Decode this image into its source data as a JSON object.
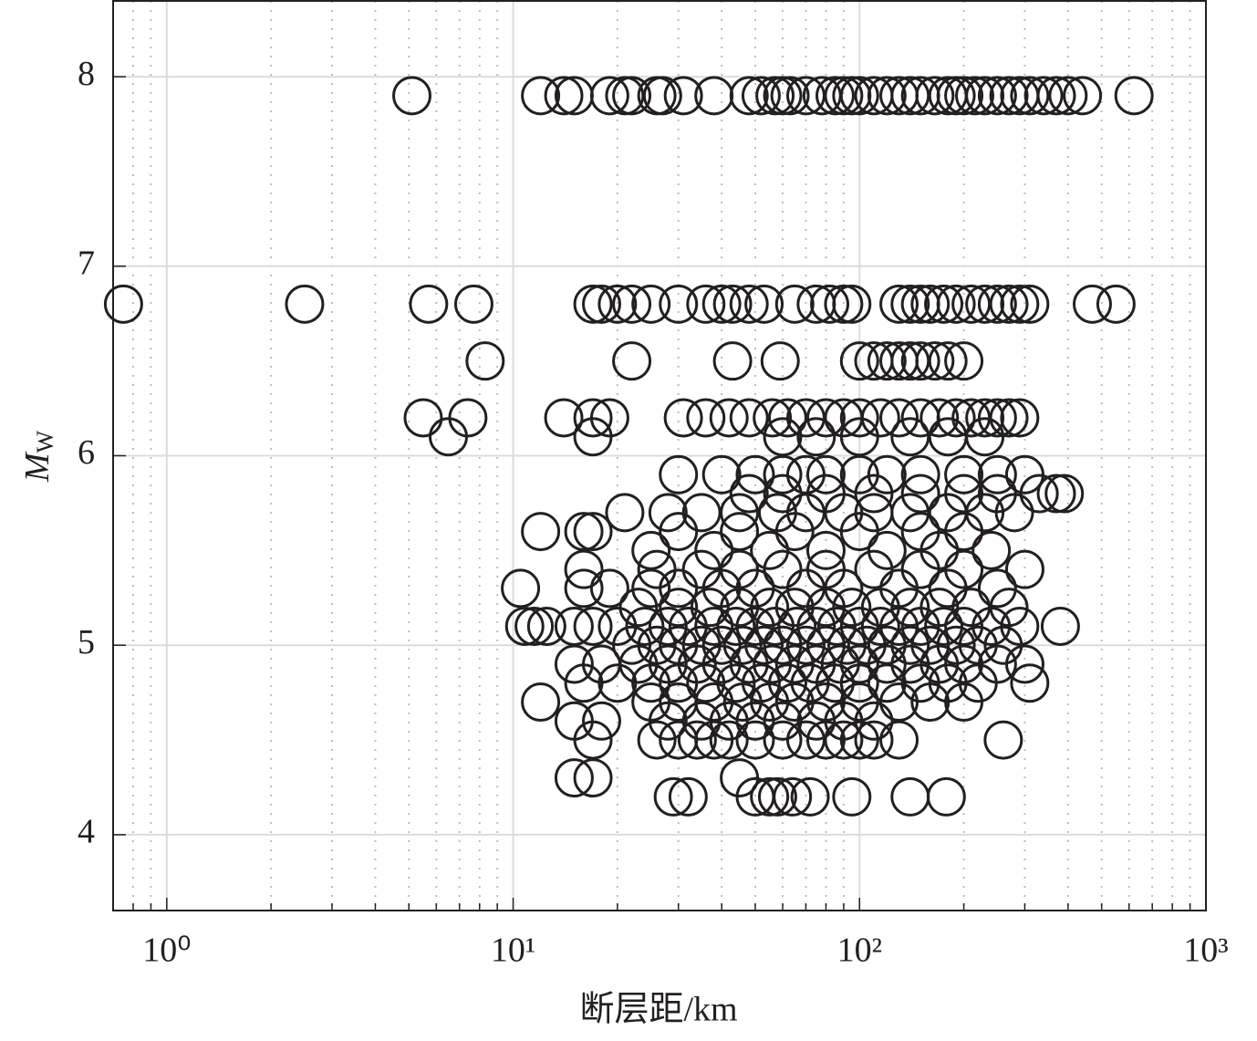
{
  "chart_data": {
    "type": "scatter",
    "xlabel": "断层距/km",
    "ylabel": [
      "M",
      "W"
    ],
    "xscale": "log",
    "xlim": [
      0.7,
      1000
    ],
    "ylim": [
      3.6,
      8.4
    ],
    "xticks": [
      {
        "value": 1,
        "label": "10⁰"
      },
      {
        "value": 10,
        "label": "10¹"
      },
      {
        "value": 100,
        "label": "10²"
      },
      {
        "value": 1000,
        "label": "10³"
      }
    ],
    "xticks_minor": [
      0.8,
      0.9,
      2,
      3,
      4,
      5,
      6,
      7,
      8,
      9,
      20,
      30,
      40,
      50,
      60,
      70,
      80,
      90,
      200,
      300,
      400,
      500,
      600,
      700,
      800,
      900
    ],
    "yticks": [
      4,
      5,
      6,
      7,
      8
    ],
    "grid": true,
    "color": "#231f20",
    "points": [
      [
        5.1,
        7.9
      ],
      [
        12,
        7.9
      ],
      [
        14,
        7.9
      ],
      [
        15,
        7.9
      ],
      [
        19,
        7.9
      ],
      [
        21,
        7.9
      ],
      [
        22,
        7.9
      ],
      [
        26,
        7.9
      ],
      [
        27,
        7.9
      ],
      [
        31,
        7.9
      ],
      [
        38,
        7.9
      ],
      [
        48,
        7.9
      ],
      [
        52,
        7.9
      ],
      [
        57,
        7.9
      ],
      [
        60,
        7.9
      ],
      [
        63,
        7.9
      ],
      [
        70,
        7.9
      ],
      [
        78,
        7.9
      ],
      [
        85,
        7.9
      ],
      [
        90,
        7.9
      ],
      [
        95,
        7.9
      ],
      [
        100,
        7.9
      ],
      [
        110,
        7.9
      ],
      [
        120,
        7.9
      ],
      [
        130,
        7.9
      ],
      [
        140,
        7.9
      ],
      [
        150,
        7.9
      ],
      [
        165,
        7.9
      ],
      [
        180,
        7.9
      ],
      [
        190,
        7.9
      ],
      [
        200,
        7.9
      ],
      [
        215,
        7.9
      ],
      [
        230,
        7.9
      ],
      [
        250,
        7.9
      ],
      [
        270,
        7.9
      ],
      [
        290,
        7.9
      ],
      [
        310,
        7.9
      ],
      [
        340,
        7.9
      ],
      [
        370,
        7.9
      ],
      [
        400,
        7.9
      ],
      [
        440,
        7.9
      ],
      [
        620,
        7.9
      ],
      [
        0.75,
        6.8
      ],
      [
        2.5,
        6.8
      ],
      [
        5.7,
        6.8
      ],
      [
        7.7,
        6.8
      ],
      [
        17,
        6.8
      ],
      [
        18,
        6.8
      ],
      [
        20,
        6.8
      ],
      [
        22,
        6.8
      ],
      [
        25,
        6.8
      ],
      [
        30,
        6.8
      ],
      [
        36,
        6.8
      ],
      [
        40,
        6.8
      ],
      [
        43,
        6.8
      ],
      [
        48,
        6.8
      ],
      [
        53,
        6.8
      ],
      [
        65,
        6.8
      ],
      [
        75,
        6.8
      ],
      [
        82,
        6.8
      ],
      [
        90,
        6.8
      ],
      [
        95,
        6.8
      ],
      [
        130,
        6.8
      ],
      [
        140,
        6.8
      ],
      [
        150,
        6.8
      ],
      [
        160,
        6.8
      ],
      [
        175,
        6.8
      ],
      [
        190,
        6.8
      ],
      [
        210,
        6.8
      ],
      [
        230,
        6.8
      ],
      [
        250,
        6.8
      ],
      [
        270,
        6.8
      ],
      [
        290,
        6.8
      ],
      [
        310,
        6.8
      ],
      [
        470,
        6.8
      ],
      [
        550,
        6.8
      ],
      [
        8.3,
        6.5
      ],
      [
        22,
        6.5
      ],
      [
        43,
        6.5
      ],
      [
        59,
        6.5
      ],
      [
        100,
        6.5
      ],
      [
        110,
        6.5
      ],
      [
        120,
        6.5
      ],
      [
        130,
        6.5
      ],
      [
        140,
        6.5
      ],
      [
        150,
        6.5
      ],
      [
        165,
        6.5
      ],
      [
        180,
        6.5
      ],
      [
        200,
        6.5
      ],
      [
        5.5,
        6.2
      ],
      [
        7.4,
        6.2
      ],
      [
        14,
        6.2
      ],
      [
        17,
        6.2
      ],
      [
        19,
        6.2
      ],
      [
        31,
        6.2
      ],
      [
        36,
        6.2
      ],
      [
        42,
        6.2
      ],
      [
        48,
        6.2
      ],
      [
        56,
        6.2
      ],
      [
        62,
        6.2
      ],
      [
        70,
        6.2
      ],
      [
        80,
        6.2
      ],
      [
        90,
        6.2
      ],
      [
        100,
        6.2
      ],
      [
        115,
        6.2
      ],
      [
        130,
        6.2
      ],
      [
        150,
        6.2
      ],
      [
        170,
        6.2
      ],
      [
        190,
        6.2
      ],
      [
        210,
        6.2
      ],
      [
        230,
        6.2
      ],
      [
        250,
        6.2
      ],
      [
        270,
        6.2
      ],
      [
        290,
        6.2
      ],
      [
        6.5,
        6.1
      ],
      [
        17,
        6.1
      ],
      [
        60,
        6.1
      ],
      [
        75,
        6.1
      ],
      [
        100,
        6.1
      ],
      [
        140,
        6.1
      ],
      [
        180,
        6.1
      ],
      [
        230,
        6.1
      ],
      [
        30,
        5.9
      ],
      [
        40,
        5.9
      ],
      [
        50,
        5.9
      ],
      [
        60,
        5.9
      ],
      [
        70,
        5.9
      ],
      [
        80,
        5.9
      ],
      [
        100,
        5.9
      ],
      [
        120,
        5.9
      ],
      [
        150,
        5.9
      ],
      [
        200,
        5.9
      ],
      [
        250,
        5.9
      ],
      [
        300,
        5.9
      ],
      [
        48,
        5.8
      ],
      [
        60,
        5.8
      ],
      [
        80,
        5.8
      ],
      [
        110,
        5.8
      ],
      [
        150,
        5.8
      ],
      [
        200,
        5.8
      ],
      [
        250,
        5.8
      ],
      [
        330,
        5.8
      ],
      [
        370,
        5.8
      ],
      [
        390,
        5.8
      ],
      [
        21,
        5.7
      ],
      [
        28,
        5.7
      ],
      [
        35,
        5.7
      ],
      [
        45,
        5.7
      ],
      [
        58,
        5.7
      ],
      [
        70,
        5.7
      ],
      [
        90,
        5.7
      ],
      [
        110,
        5.7
      ],
      [
        140,
        5.7
      ],
      [
        180,
        5.7
      ],
      [
        230,
        5.7
      ],
      [
        280,
        5.7
      ],
      [
        12,
        5.6
      ],
      [
        16,
        5.6
      ],
      [
        17,
        5.6
      ],
      [
        30,
        5.6
      ],
      [
        45,
        5.6
      ],
      [
        65,
        5.6
      ],
      [
        100,
        5.6
      ],
      [
        150,
        5.6
      ],
      [
        200,
        5.6
      ],
      [
        25,
        5.5
      ],
      [
        38,
        5.5
      ],
      [
        55,
        5.5
      ],
      [
        80,
        5.5
      ],
      [
        120,
        5.5
      ],
      [
        170,
        5.5
      ],
      [
        240,
        5.5
      ],
      [
        16,
        5.4
      ],
      [
        26,
        5.4
      ],
      [
        35,
        5.4
      ],
      [
        45,
        5.4
      ],
      [
        60,
        5.4
      ],
      [
        80,
        5.4
      ],
      [
        110,
        5.4
      ],
      [
        150,
        5.4
      ],
      [
        200,
        5.4
      ],
      [
        300,
        5.4
      ],
      [
        10.5,
        5.3
      ],
      [
        16,
        5.3
      ],
      [
        19,
        5.3
      ],
      [
        25,
        5.3
      ],
      [
        30,
        5.3
      ],
      [
        40,
        5.3
      ],
      [
        50,
        5.3
      ],
      [
        70,
        5.3
      ],
      [
        90,
        5.3
      ],
      [
        130,
        5.3
      ],
      [
        180,
        5.3
      ],
      [
        250,
        5.3
      ],
      [
        23,
        5.2
      ],
      [
        30,
        5.2
      ],
      [
        37,
        5.2
      ],
      [
        45,
        5.2
      ],
      [
        55,
        5.2
      ],
      [
        65,
        5.2
      ],
      [
        80,
        5.2
      ],
      [
        95,
        5.2
      ],
      [
        115,
        5.2
      ],
      [
        140,
        5.2
      ],
      [
        170,
        5.2
      ],
      [
        210,
        5.2
      ],
      [
        270,
        5.2
      ],
      [
        10.8,
        5.1
      ],
      [
        11.5,
        5.1
      ],
      [
        12.5,
        5.1
      ],
      [
        15,
        5.1
      ],
      [
        17,
        5.1
      ],
      [
        20,
        5.1
      ],
      [
        24,
        5.1
      ],
      [
        28,
        5.1
      ],
      [
        32,
        5.1
      ],
      [
        38,
        5.1
      ],
      [
        44,
        5.1
      ],
      [
        50,
        5.1
      ],
      [
        57,
        5.1
      ],
      [
        66,
        5.1
      ],
      [
        75,
        5.1
      ],
      [
        86,
        5.1
      ],
      [
        100,
        5.1
      ],
      [
        115,
        5.1
      ],
      [
        130,
        5.1
      ],
      [
        150,
        5.1
      ],
      [
        175,
        5.1
      ],
      [
        200,
        5.1
      ],
      [
        240,
        5.1
      ],
      [
        290,
        5.1
      ],
      [
        380,
        5.1
      ],
      [
        22,
        5.0
      ],
      [
        26,
        5.0
      ],
      [
        30,
        5.0
      ],
      [
        35,
        5.0
      ],
      [
        40,
        5.0
      ],
      [
        46,
        5.0
      ],
      [
        53,
        5.0
      ],
      [
        60,
        5.0
      ],
      [
        70,
        5.0
      ],
      [
        80,
        5.0
      ],
      [
        92,
        5.0
      ],
      [
        105,
        5.0
      ],
      [
        120,
        5.0
      ],
      [
        140,
        5.0
      ],
      [
        160,
        5.0
      ],
      [
        190,
        5.0
      ],
      [
        220,
        5.0
      ],
      [
        260,
        5.0
      ],
      [
        15,
        4.9
      ],
      [
        18,
        4.9
      ],
      [
        23,
        4.9
      ],
      [
        28,
        4.9
      ],
      [
        34,
        4.9
      ],
      [
        40,
        4.9
      ],
      [
        48,
        4.9
      ],
      [
        56,
        4.9
      ],
      [
        65,
        4.9
      ],
      [
        75,
        4.9
      ],
      [
        88,
        4.9
      ],
      [
        100,
        4.9
      ],
      [
        120,
        4.9
      ],
      [
        140,
        4.9
      ],
      [
        170,
        4.9
      ],
      [
        200,
        4.9
      ],
      [
        250,
        4.9
      ],
      [
        300,
        4.9
      ],
      [
        16,
        4.8
      ],
      [
        20,
        4.8
      ],
      [
        25,
        4.8
      ],
      [
        30,
        4.8
      ],
      [
        36,
        4.8
      ],
      [
        44,
        4.8
      ],
      [
        52,
        4.8
      ],
      [
        62,
        4.8
      ],
      [
        72,
        4.8
      ],
      [
        85,
        4.8
      ],
      [
        100,
        4.8
      ],
      [
        120,
        4.8
      ],
      [
        150,
        4.8
      ],
      [
        180,
        4.8
      ],
      [
        220,
        4.8
      ],
      [
        310,
        4.8
      ],
      [
        12,
        4.7
      ],
      [
        25,
        4.7
      ],
      [
        30,
        4.7
      ],
      [
        38,
        4.7
      ],
      [
        46,
        4.7
      ],
      [
        55,
        4.7
      ],
      [
        65,
        4.7
      ],
      [
        80,
        4.7
      ],
      [
        100,
        4.7
      ],
      [
        130,
        4.7
      ],
      [
        160,
        4.7
      ],
      [
        200,
        4.7
      ],
      [
        15,
        4.6
      ],
      [
        18,
        4.6
      ],
      [
        28,
        4.6
      ],
      [
        35,
        4.6
      ],
      [
        42,
        4.6
      ],
      [
        50,
        4.6
      ],
      [
        60,
        4.6
      ],
      [
        75,
        4.6
      ],
      [
        90,
        4.6
      ],
      [
        110,
        4.6
      ],
      [
        17,
        4.5
      ],
      [
        26,
        4.5
      ],
      [
        30,
        4.5
      ],
      [
        34,
        4.5
      ],
      [
        38,
        4.5
      ],
      [
        42,
        4.5
      ],
      [
        50,
        4.5
      ],
      [
        60,
        4.5
      ],
      [
        70,
        4.5
      ],
      [
        80,
        4.5
      ],
      [
        90,
        4.5
      ],
      [
        100,
        4.5
      ],
      [
        110,
        4.5
      ],
      [
        130,
        4.5
      ],
      [
        260,
        4.5
      ],
      [
        15,
        4.3
      ],
      [
        17,
        4.3
      ],
      [
        45,
        4.3
      ],
      [
        29,
        4.2
      ],
      [
        32,
        4.2
      ],
      [
        50,
        4.2
      ],
      [
        55,
        4.2
      ],
      [
        58,
        4.2
      ],
      [
        64,
        4.2
      ],
      [
        72,
        4.2
      ],
      [
        95,
        4.2
      ],
      [
        140,
        4.2
      ],
      [
        178,
        4.2
      ]
    ]
  }
}
